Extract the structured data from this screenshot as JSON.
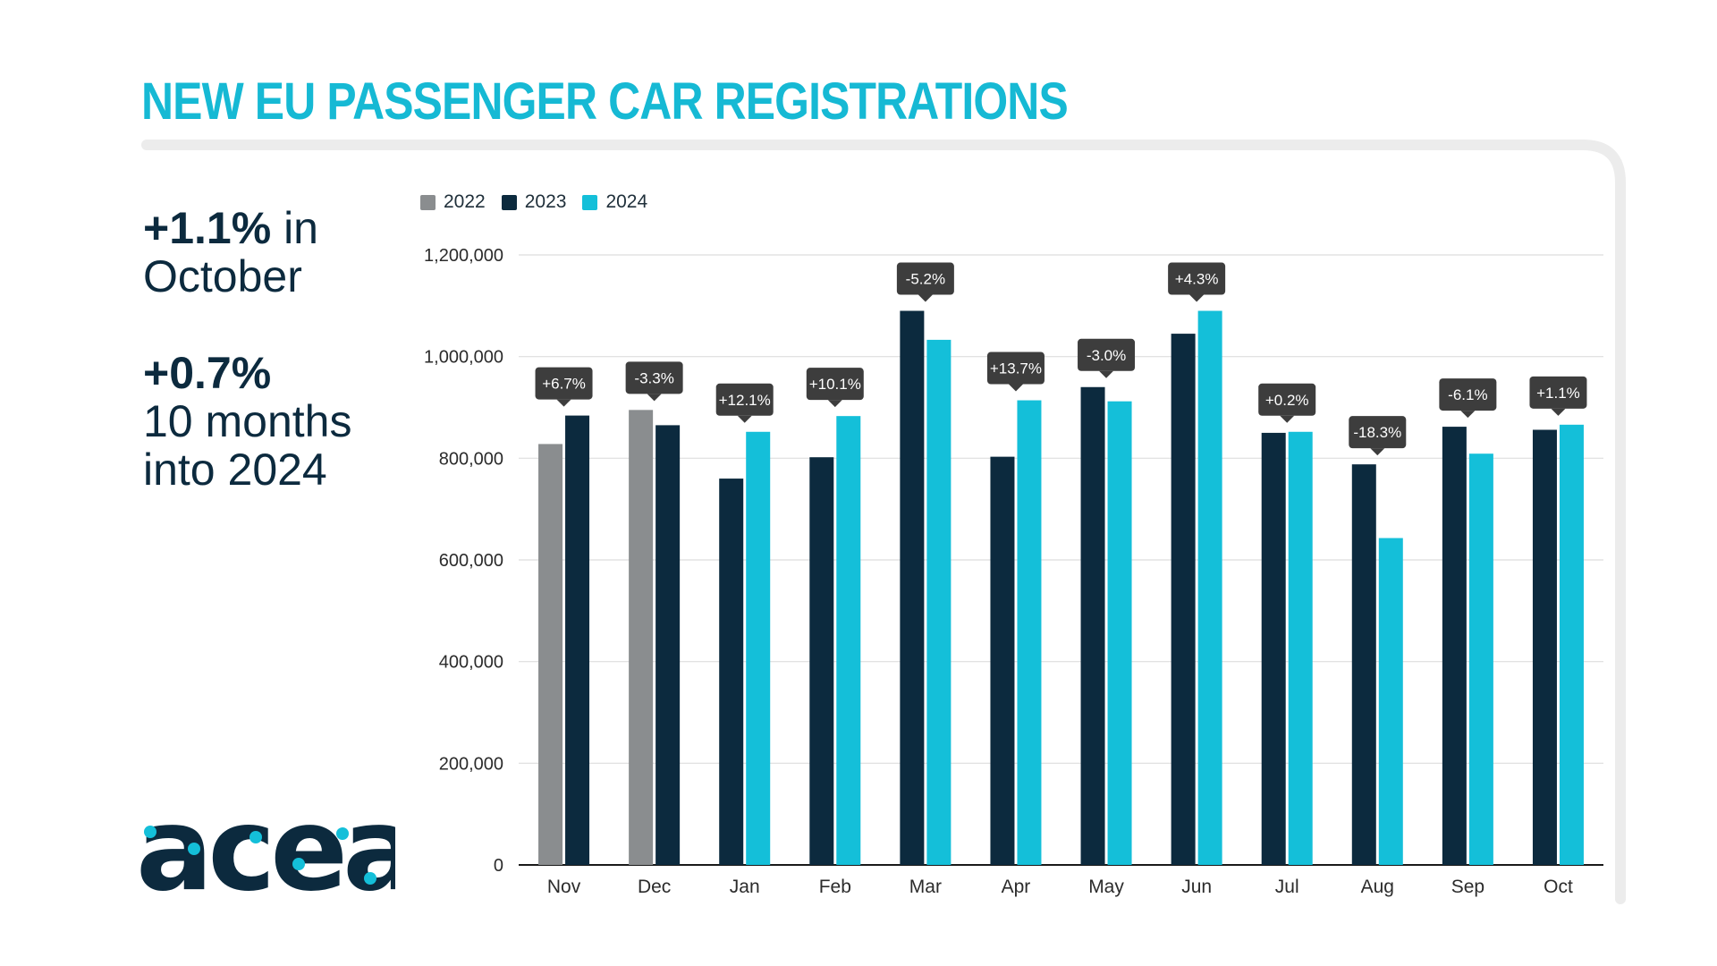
{
  "header": {
    "title": "NEW EU PASSENGER CAR REGISTRATIONS"
  },
  "kpi": {
    "first_value": "+1.1%",
    "first_suffix": " in",
    "first_label": "October",
    "second_value": "+0.7%",
    "second_line1": "10 months",
    "second_line2": "into 2024"
  },
  "logo": {
    "text": "acea"
  },
  "colors": {
    "title": "#16b9d4",
    "y2022": "#8a8d8f",
    "y2023": "#0c2a3e",
    "y2024": "#14bfd9",
    "bubble": "#3d3d3d",
    "frame": "#ececec"
  },
  "chart_data": {
    "type": "bar",
    "categories": [
      "Nov",
      "Dec",
      "Jan",
      "Feb",
      "Mar",
      "Apr",
      "May",
      "Jun",
      "Jul",
      "Aug",
      "Sep",
      "Oct"
    ],
    "series": [
      {
        "name": "2022",
        "values": [
          828000,
          895000,
          null,
          null,
          null,
          null,
          null,
          null,
          null,
          null,
          null,
          null
        ]
      },
      {
        "name": "2023",
        "values": [
          884000,
          865000,
          760000,
          802000,
          1090000,
          803000,
          940000,
          1045000,
          850000,
          788000,
          862000,
          856000
        ]
      },
      {
        "name": "2024",
        "values": [
          null,
          null,
          852000,
          883000,
          1033000,
          914000,
          912000,
          1090000,
          852000,
          643000,
          809000,
          866000
        ]
      }
    ],
    "change_labels": [
      "+6.7%",
      "-3.3%",
      "+12.1%",
      "+10.1%",
      "-5.2%",
      "+13.7%",
      "-3.0%",
      "+4.3%",
      "+0.2%",
      "-18.3%",
      "-6.1%",
      "+1.1%"
    ],
    "y_ticks": [
      "0",
      "200,000",
      "400,000",
      "600,000",
      "800,000",
      "1,000,000",
      "1,200,000"
    ],
    "ylim": [
      0,
      1200000
    ],
    "legend": [
      "2022",
      "2023",
      "2024"
    ],
    "legend_position": "top-left",
    "grid": true
  }
}
